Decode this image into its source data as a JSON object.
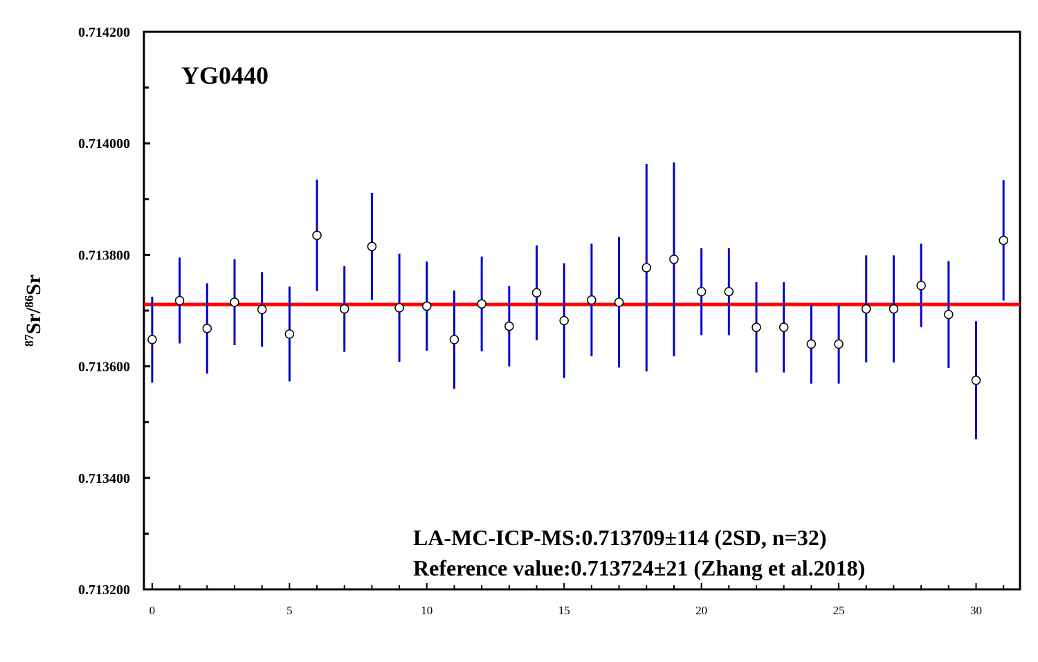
{
  "chart_data": {
    "type": "scatter",
    "title": "YG0440",
    "ylabel": {
      "sup1": "87",
      "main1": "Sr/",
      "sup2": "86",
      "main2": "Sr"
    },
    "xlabel": "",
    "xlim": [
      -0.3,
      31.6
    ],
    "ylim": [
      0.7132,
      0.7142
    ],
    "xticks": [
      0,
      5,
      10,
      15,
      20,
      25,
      30
    ],
    "xtick_labels": [
      "0",
      "5",
      "10",
      "15",
      "20",
      "25",
      "30"
    ],
    "yticks": [
      0.7132,
      0.7134,
      0.7136,
      0.7138,
      0.714,
      0.7142
    ],
    "ytick_labels": [
      "0.713200",
      "0.713400",
      "0.713600",
      "0.713800",
      "0.714000",
      "0.714200"
    ],
    "grid": false,
    "reference_line": {
      "y": 0.713711,
      "color": "#ff0000"
    },
    "series": [
      {
        "x": [
          0,
          1,
          2,
          3,
          4,
          5,
          6,
          7,
          8,
          9,
          10,
          11,
          12,
          13,
          14,
          15,
          16,
          17,
          18,
          19,
          20,
          21,
          22,
          23,
          24,
          25,
          26,
          27,
          28,
          29,
          30,
          31
        ],
        "y": [
          0.713648,
          0.713718,
          0.713668,
          0.713715,
          0.713702,
          0.713658,
          0.713835,
          0.713703,
          0.713815,
          0.713705,
          0.713708,
          0.713648,
          0.713712,
          0.713672,
          0.713732,
          0.713682,
          0.713719,
          0.713715,
          0.713777,
          0.713792,
          0.713734,
          0.713734,
          0.71367,
          0.71367,
          0.71364,
          0.71364,
          0.713703,
          0.713703,
          0.713745,
          0.713693,
          0.713575,
          0.713826
        ],
        "err": [
          7.7e-05,
          7.7e-05,
          8.1e-05,
          7.7e-05,
          6.7e-05,
          8.5e-05,
          0.0001,
          7.7e-05,
          9.6e-05,
          9.7e-05,
          8e-05,
          8.8e-05,
          8.5e-05,
          7.2e-05,
          8.5e-05,
          0.000103,
          0.000101,
          0.000117,
          0.000186,
          0.000174,
          7.8e-05,
          7.8e-05,
          8.1e-05,
          8.1e-05,
          7.1e-05,
          7.1e-05,
          9.6e-05,
          9.6e-05,
          7.5e-05,
          9.6e-05,
          0.000106,
          0.000108
        ],
        "marker_color": "#ffffff",
        "errorbar_color": "#0000cc"
      }
    ],
    "annotations": [
      "LA-MC-ICP-MS:0.713709±114 (2SD, n=32)",
      "Reference value:0.713724±21 (Zhang et al.2018)"
    ]
  }
}
